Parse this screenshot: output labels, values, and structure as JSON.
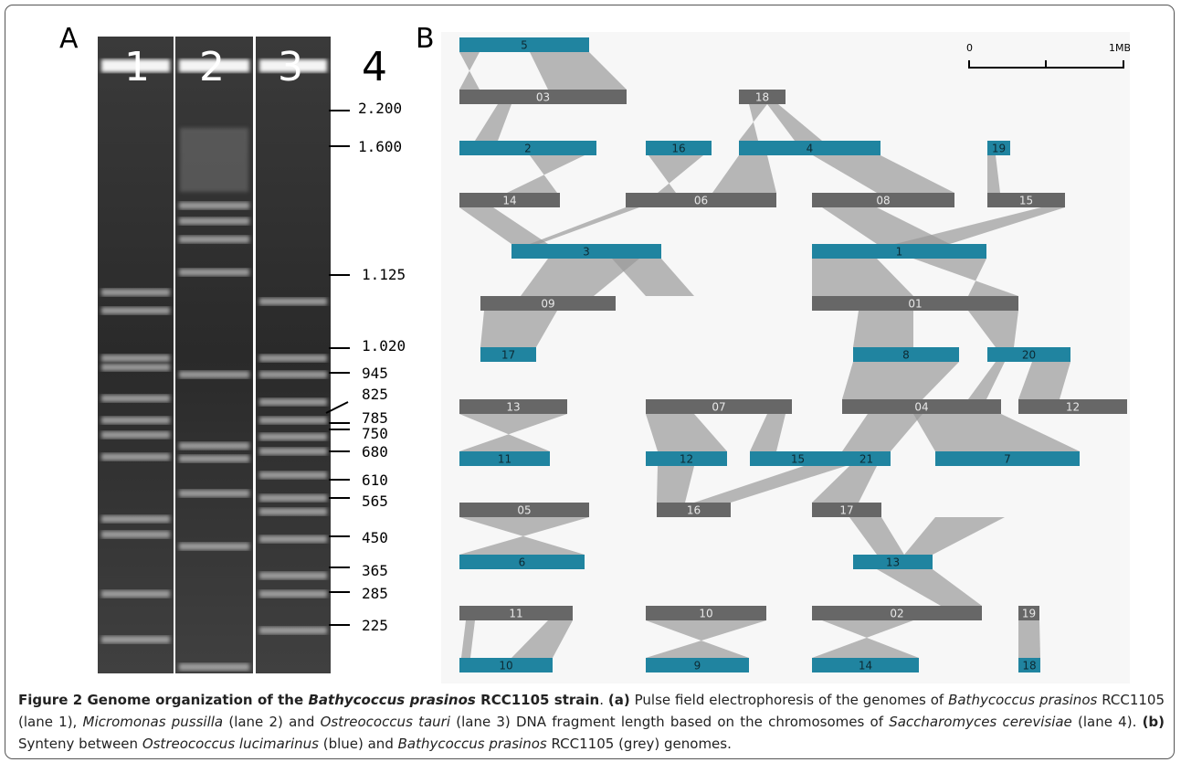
{
  "panel_a": {
    "label": "A",
    "lanes": [
      "1",
      "2",
      "3",
      "4"
    ],
    "markers": [
      "2.200",
      "1.600",
      "1.125",
      "1.020",
      "945",
      "825",
      "785",
      "750",
      "680",
      "610",
      "565",
      "450",
      "365",
      "285",
      "225"
    ]
  },
  "panel_b": {
    "label": "B",
    "scale_bar": {
      "start": "0",
      "end": "1MB"
    },
    "rows": [
      [
        "5"
      ],
      [
        "03",
        "18"
      ],
      [
        "2",
        "16",
        "4",
        "19"
      ],
      [
        "14",
        "06",
        "08",
        "15"
      ],
      [
        "3",
        "1"
      ],
      [
        "09",
        "01"
      ],
      [
        "17",
        "8",
        "20"
      ],
      [
        "13",
        "07",
        "04",
        "12"
      ],
      [
        "11",
        "12",
        "15",
        "21",
        "7"
      ],
      [
        "05",
        "16",
        "17"
      ],
      [
        "6",
        "13"
      ],
      [
        "11",
        "10",
        "02",
        "19"
      ],
      [
        "10",
        "9",
        "14",
        "18"
      ]
    ]
  },
  "caption": {
    "parts": [
      "Figure 2 Genome organization of the ",
      "Bathycoccus prasinos",
      " RCC1105 strain",
      ". ",
      "(a)",
      " Pulse field electrophoresis of the genomes of ",
      "Bathycoccus prasinos",
      " RCC1105 (lane 1), ",
      "Micromonas pussilla",
      " (lane 2) and ",
      "Ostreococcus tauri",
      " (lane 3) DNA fragment length based on the chromosomes of ",
      "Saccharomyces cerevisiae",
      " (lane 4). ",
      "(b)",
      " Synteny between ",
      "Ostreococcus lucimarinus",
      " (blue) and ",
      "Bathycoccus prasinos",
      " RCC1105 (grey) genomes."
    ]
  }
}
